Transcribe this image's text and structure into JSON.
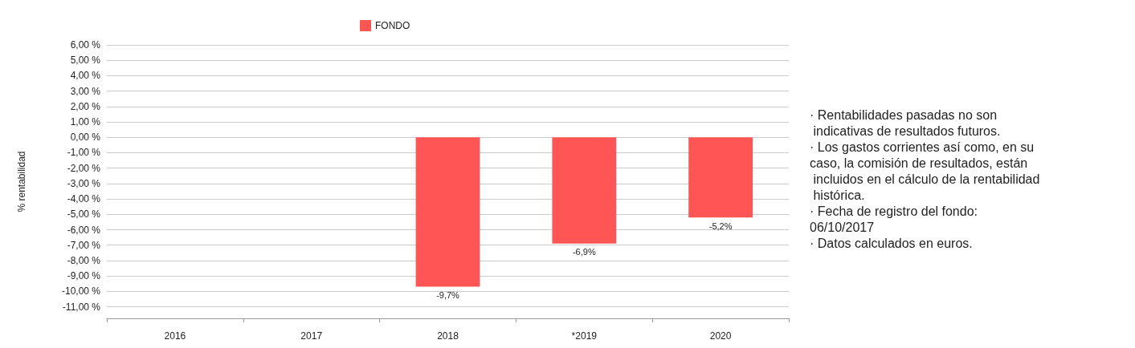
{
  "chart_data": {
    "type": "bar",
    "ylabel": "% rentabilidad",
    "categories": [
      "2016",
      "2017",
      "2018",
      "*2019",
      "2020"
    ],
    "series": [
      {
        "name": "FONDO",
        "color": "#ff5555",
        "values": [
          null,
          null,
          -9.7,
          -6.9,
          -5.2
        ],
        "value_labels": [
          null,
          null,
          "-9,7%",
          "-6,9%",
          "-5,2%"
        ]
      }
    ],
    "ylim": [
      -11.75,
      6
    ],
    "yticks": [
      {
        "value": 6,
        "label": "6,00 %"
      },
      {
        "value": 5,
        "label": "5,00 %"
      },
      {
        "value": 4,
        "label": "4,00 %"
      },
      {
        "value": 3,
        "label": "3,00 %"
      },
      {
        "value": 2,
        "label": "2,00 %"
      },
      {
        "value": 1,
        "label": "1,00 %"
      },
      {
        "value": 0,
        "label": "0,00 %"
      },
      {
        "value": -1,
        "label": "-1,00 %"
      },
      {
        "value": -2,
        "label": "-2,00 %"
      },
      {
        "value": -3,
        "label": "-3,00 %"
      },
      {
        "value": -4,
        "label": "-4,00 %"
      },
      {
        "value": -5,
        "label": "-5,00 %"
      },
      {
        "value": -6,
        "label": "-6,00 %"
      },
      {
        "value": -7,
        "label": "-7,00 %"
      },
      {
        "value": -8,
        "label": "-8,00 %"
      },
      {
        "value": -9,
        "label": "-9,00 %"
      },
      {
        "value": -10,
        "label": "-10,00 %"
      },
      {
        "value": -11,
        "label": "-11,00 %"
      }
    ],
    "grid": "y",
    "legend": "top",
    "annotations": [
      "· Rentabilidades pasadas no son\n indicativas de resultados futuros.",
      "· Los gastos corrientes así como, en su\ncaso, la comisión de resultados, están\n incluidos en el cálculo de la rentabilidad\n histórica.",
      "· Fecha de registro del fondo:\n06/10/2017",
      "· Datos calculados en euros."
    ]
  }
}
